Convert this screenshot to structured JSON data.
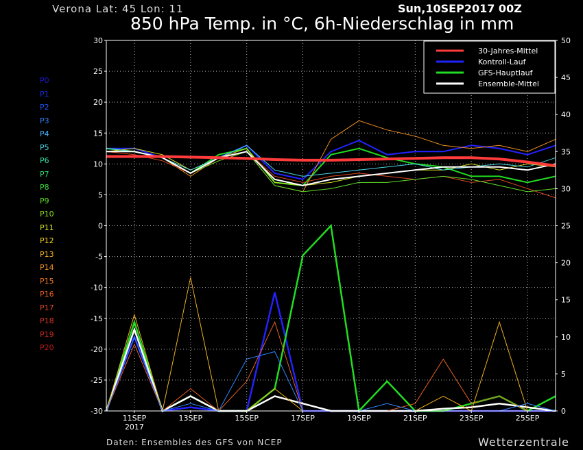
{
  "header": {
    "location": "Verona   Lat: 45 Lon: 11",
    "date": "Sun,10SEP2017 00Z",
    "title": "850 hPa Temp. in °C, 6h-Niederschlag in mm"
  },
  "footer": {
    "credit": "Daten: Ensembles des GFS von NCEP",
    "brand": "Wetterzentrale"
  },
  "members": [
    {
      "label": "P0",
      "color": "#1a1acc"
    },
    {
      "label": "P1",
      "color": "#1a2ee0"
    },
    {
      "label": "P2",
      "color": "#2254ff"
    },
    {
      "label": "P3",
      "color": "#2f86ff"
    },
    {
      "label": "P4",
      "color": "#3fb6ff"
    },
    {
      "label": "P5",
      "color": "#4ad6e6"
    },
    {
      "label": "P6",
      "color": "#30e0a0"
    },
    {
      "label": "P7",
      "color": "#2ee070"
    },
    {
      "label": "P8",
      "color": "#3cdc3c"
    },
    {
      "label": "P9",
      "color": "#5ee02a"
    },
    {
      "label": "P10",
      "color": "#8ee020"
    },
    {
      "label": "P11",
      "color": "#d6e020"
    },
    {
      "label": "P12",
      "color": "#f0d020"
    },
    {
      "label": "P13",
      "color": "#f0b020"
    },
    {
      "label": "P14",
      "color": "#f09020"
    },
    {
      "label": "P15",
      "color": "#f07820"
    },
    {
      "label": "P16",
      "color": "#e86020"
    },
    {
      "label": "P17",
      "color": "#e04820"
    },
    {
      "label": "P18",
      "color": "#d83820"
    },
    {
      "label": "P19",
      "color": "#c82818"
    },
    {
      "label": "P20",
      "color": "#b81818"
    }
  ],
  "chart_data": {
    "type": "line",
    "x": [
      "10SEP",
      "11SEP",
      "12SEP",
      "13SEP",
      "14SEP",
      "15SEP",
      "16SEP",
      "17SEP",
      "18SEP",
      "19SEP",
      "20SEP",
      "21SEP",
      "22SEP",
      "23SEP",
      "24SEP",
      "25SEP",
      "26SEP"
    ],
    "x_tick_labels": [
      "11SEP",
      "13SEP",
      "15SEP",
      "17SEP",
      "19SEP",
      "21SEP",
      "23SEP",
      "25SEP"
    ],
    "x_year_label": "2017",
    "ylim_left": [
      -30,
      30
    ],
    "yticks_left": [
      30,
      25,
      20,
      15,
      10,
      5,
      0,
      -5,
      -10,
      -15,
      -20,
      -25,
      -30
    ],
    "ylim_right": [
      0,
      50
    ],
    "yticks_right": [
      50,
      45,
      40,
      35,
      30,
      25,
      20,
      15,
      10,
      5,
      0
    ],
    "grid": true,
    "legend_position": "top-right",
    "legend": [
      {
        "label": "30-Jahres-Mittel",
        "color": "#ff3b3b"
      },
      {
        "label": "Kontroll-Lauf",
        "color": "#2222ff"
      },
      {
        "label": "GFS-Hauptlauf",
        "color": "#22dd22"
      },
      {
        "label": "Ensemble-Mittel",
        "color": "#ffffff"
      }
    ],
    "climatology_temp": [
      11.2,
      11.2,
      11.2,
      11.1,
      11.0,
      10.9,
      10.7,
      10.6,
      10.6,
      10.7,
      10.8,
      10.9,
      11.0,
      11.0,
      10.8,
      10.3,
      9.7
    ],
    "temperature_series": [
      {
        "name": "Kontroll-Lauf",
        "color": "#2222ff",
        "values": [
          12.5,
          12.5,
          11.0,
          8.5,
          11.0,
          13.0,
          8.5,
          7.5,
          12.0,
          13.8,
          11.5,
          12.0,
          12.0,
          13.0,
          12.5,
          11.5,
          13.0
        ]
      },
      {
        "name": "GFS-Hauptlauf",
        "color": "#22dd22",
        "values": [
          12.5,
          12.0,
          11.0,
          8.5,
          11.5,
          12.5,
          7.0,
          6.5,
          11.5,
          12.5,
          11.0,
          10.0,
          9.5,
          8.0,
          8.0,
          7.0,
          8.0
        ]
      },
      {
        "name": "Ensemble-Mittel",
        "color": "#ffffff",
        "values": [
          12.0,
          12.0,
          11.0,
          8.5,
          11.0,
          12.0,
          7.5,
          6.5,
          7.5,
          8.0,
          8.5,
          9.0,
          9.5,
          9.5,
          9.5,
          9.0,
          10.0
        ]
      },
      {
        "name": "P11",
        "color": "#d6e020",
        "values": [
          12.0,
          12.5,
          11.5,
          9.0,
          11.0,
          12.5,
          7.0,
          6.5,
          7.0,
          8.0,
          8.5,
          9.0,
          9.0,
          10.0,
          9.0,
          10.0,
          9.5
        ]
      },
      {
        "name": "P14",
        "color": "#f09020",
        "values": [
          12.5,
          12.0,
          11.0,
          8.0,
          11.0,
          12.0,
          6.5,
          5.5,
          14.0,
          17.0,
          15.5,
          14.5,
          13.0,
          12.5,
          13.0,
          12.0,
          14.0
        ]
      },
      {
        "name": "P17",
        "color": "#e04820",
        "values": [
          12.0,
          11.5,
          10.5,
          8.5,
          10.5,
          12.0,
          8.0,
          7.0,
          8.0,
          8.5,
          8.0,
          7.5,
          8.0,
          7.0,
          7.5,
          6.0,
          4.5
        ]
      },
      {
        "name": "P5",
        "color": "#4ad6e6",
        "values": [
          12.5,
          12.0,
          11.0,
          9.0,
          11.0,
          13.0,
          9.0,
          8.0,
          8.5,
          9.0,
          9.5,
          10.0,
          9.0,
          9.5,
          10.0,
          9.5,
          11.0
        ]
      },
      {
        "name": "P9",
        "color": "#5ee02a",
        "values": [
          12.0,
          12.0,
          11.0,
          8.5,
          10.5,
          12.0,
          6.5,
          5.5,
          6.0,
          7.0,
          7.0,
          7.5,
          8.0,
          7.5,
          6.5,
          5.5,
          6.0
        ]
      }
    ],
    "precip_series": [
      {
        "name": "Kontroll-Lauf",
        "color": "#2222ff",
        "values": [
          0,
          10,
          0,
          0.5,
          0,
          0,
          16,
          0,
          0,
          0,
          0,
          0,
          0,
          0,
          0,
          0,
          0
        ]
      },
      {
        "name": "GFS-Hauptlauf",
        "color": "#22dd22",
        "values": [
          0,
          12,
          0,
          2,
          0,
          0,
          3,
          21,
          25,
          0,
          4,
          0,
          0,
          1,
          2,
          0,
          2
        ]
      },
      {
        "name": "Ensemble-Mittel",
        "color": "#ffffff",
        "values": [
          0,
          11,
          0,
          2,
          0,
          0,
          2,
          1,
          0,
          0,
          0,
          0,
          0.3,
          0.5,
          1,
          0.5,
          0
        ]
      },
      {
        "name": "P13",
        "color": "#f0b020",
        "values": [
          0,
          13,
          0,
          18,
          0,
          0,
          3,
          0,
          0,
          0,
          0,
          0,
          2,
          0,
          12,
          0,
          0
        ]
      },
      {
        "name": "P16",
        "color": "#e86020",
        "values": [
          0,
          9,
          0,
          3,
          0,
          4,
          12,
          0,
          0,
          0,
          0,
          1,
          7,
          1,
          2,
          0,
          0
        ]
      },
      {
        "name": "P3",
        "color": "#2f86ff",
        "values": [
          0,
          10,
          0,
          1,
          0,
          7,
          8,
          0,
          0,
          0,
          1,
          0,
          0,
          0,
          0,
          1,
          0
        ]
      }
    ]
  }
}
